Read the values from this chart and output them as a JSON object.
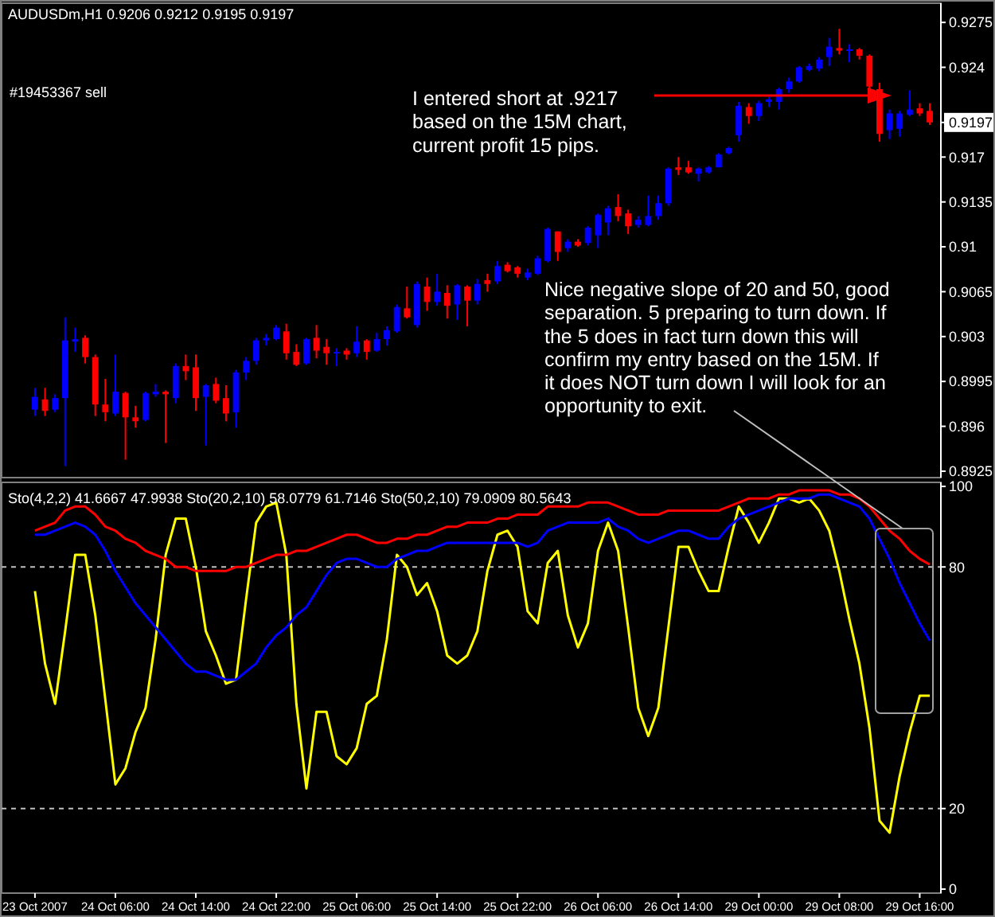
{
  "chart_data": [
    {
      "type": "candlestick",
      "title": "AUDUSDm,H1  0.9206 0.9212 0.9195 0.9197",
      "categories": [
        null,
        null,
        null,
        null,
        null,
        null,
        null,
        null,
        null,
        null,
        null,
        null,
        null,
        null,
        null,
        null,
        null,
        null,
        null,
        null,
        null,
        null,
        null,
        null,
        null,
        null,
        null,
        null,
        null,
        null,
        null,
        null,
        null,
        null,
        null,
        null,
        null,
        null,
        null,
        null,
        null,
        null,
        null,
        null,
        null,
        null,
        null,
        null,
        null,
        null,
        null,
        null,
        null,
        null,
        null,
        null,
        null,
        null,
        null,
        null,
        null,
        null,
        null,
        null,
        null,
        null,
        null,
        null,
        null,
        null,
        null,
        null,
        null,
        null,
        null,
        null,
        null,
        null,
        null,
        null,
        null,
        null,
        null,
        null,
        null,
        null,
        null,
        null,
        null,
        null
      ],
      "ohlc": [
        [
          0.8973,
          0.899,
          0.8968,
          0.8983
        ],
        [
          0.8981,
          0.899,
          0.8968,
          0.8972
        ],
        [
          0.8973,
          0.8985,
          0.8971,
          0.8982
        ],
        [
          0.8982,
          0.9045,
          0.8929,
          0.9027
        ],
        [
          0.9026,
          0.9037,
          0.9018,
          0.9028
        ],
        [
          0.9029,
          0.9031,
          0.9009,
          0.9014
        ],
        [
          0.9014,
          0.9016,
          0.8968,
          0.8977
        ],
        [
          0.8977,
          0.8997,
          0.8964,
          0.8971
        ],
        [
          0.897,
          0.9016,
          0.8968,
          0.8987
        ],
        [
          0.8986,
          0.8987,
          0.8934,
          0.8967
        ],
        [
          0.8967,
          0.8976,
          0.8959,
          0.8964
        ],
        [
          0.8965,
          0.8987,
          0.8964,
          0.8986
        ],
        [
          0.8985,
          0.8993,
          0.8983,
          0.8987
        ],
        [
          0.8987,
          0.8988,
          0.8947,
          0.8985
        ],
        [
          0.8982,
          0.9009,
          0.8978,
          0.9007
        ],
        [
          0.9007,
          0.9016,
          0.8996,
          0.9003
        ],
        [
          0.9006,
          0.9016,
          0.8972,
          0.8982
        ],
        [
          0.8983,
          0.8993,
          0.8945,
          0.8992
        ],
        [
          0.8993,
          0.8998,
          0.8978,
          0.898
        ],
        [
          0.8982,
          0.8992,
          0.8964,
          0.897
        ],
        [
          0.8971,
          0.9004,
          0.8959,
          0.9002
        ],
        [
          0.9002,
          0.9014,
          0.8996,
          0.9011
        ],
        [
          0.9011,
          0.9029,
          0.9008,
          0.9027
        ],
        [
          0.9027,
          0.9032,
          0.9023,
          0.9029
        ],
        [
          0.9028,
          0.9039,
          0.9027,
          0.9037
        ],
        [
          0.9034,
          0.904,
          0.9012,
          0.9017
        ],
        [
          0.9018,
          0.9024,
          0.9007,
          0.9008
        ],
        [
          0.9009,
          0.9029,
          0.9008,
          0.9028
        ],
        [
          0.9029,
          0.9039,
          0.9013,
          0.9019
        ],
        [
          0.9022,
          0.9028,
          0.9008,
          0.9017
        ],
        [
          0.9017,
          0.9021,
          0.9007,
          0.9018
        ],
        [
          0.9019,
          0.9021,
          0.9012,
          0.9016
        ],
        [
          0.9017,
          0.9038,
          0.9014,
          0.9026
        ],
        [
          0.9027,
          0.9028,
          0.9012,
          0.9018
        ],
        [
          0.9019,
          0.9033,
          0.9018,
          0.9028
        ],
        [
          0.9028,
          0.9038,
          0.9023,
          0.9035
        ],
        [
          0.9034,
          0.9055,
          0.9033,
          0.9053
        ],
        [
          0.9052,
          0.9069,
          0.9044,
          0.9045
        ],
        [
          0.9039,
          0.9073,
          0.9037,
          0.9071
        ],
        [
          0.9069,
          0.9076,
          0.905,
          0.9057
        ],
        [
          0.9057,
          0.9079,
          0.9054,
          0.9065
        ],
        [
          0.9064,
          0.907,
          0.9044,
          0.9054
        ],
        [
          0.9055,
          0.9071,
          0.9043,
          0.907
        ],
        [
          0.9069,
          0.907,
          0.9038,
          0.9058
        ],
        [
          0.9058,
          0.9075,
          0.9055,
          0.9071
        ],
        [
          0.9074,
          0.9079,
          0.9065,
          0.9071
        ],
        [
          0.9073,
          0.9089,
          0.9071,
          0.9085
        ],
        [
          0.9086,
          0.9088,
          0.908,
          0.9081
        ],
        [
          0.9084,
          0.9085,
          0.9076,
          0.9079
        ],
        [
          0.9076,
          0.9083,
          0.9074,
          0.908
        ],
        [
          0.9079,
          0.9093,
          0.9078,
          0.9091
        ],
        [
          0.9089,
          0.9115,
          0.9088,
          0.9114
        ],
        [
          0.9112,
          0.9112,
          0.9089,
          0.9096
        ],
        [
          0.9099,
          0.9106,
          0.9096,
          0.9104
        ],
        [
          0.9104,
          0.9106,
          0.91,
          0.9101
        ],
        [
          0.9103,
          0.9116,
          0.9101,
          0.9115
        ],
        [
          0.9109,
          0.9126,
          0.9099,
          0.9125
        ],
        [
          0.9119,
          0.9132,
          0.9109,
          0.913
        ],
        [
          0.9131,
          0.9141,
          0.912,
          0.9124
        ],
        [
          0.9126,
          0.9129,
          0.911,
          0.9116
        ],
        [
          0.9117,
          0.9124,
          0.9115,
          0.9121
        ],
        [
          0.9117,
          0.914,
          0.9116,
          0.9124
        ],
        [
          0.9124,
          0.914,
          0.9121,
          0.9134
        ],
        [
          0.9134,
          0.9162,
          0.9132,
          0.9161
        ],
        [
          0.9162,
          0.917,
          0.9156,
          0.916
        ],
        [
          0.9162,
          0.9167,
          0.9157,
          0.9158
        ],
        [
          0.9157,
          0.9162,
          0.9151,
          0.9161
        ],
        [
          0.9158,
          0.9163,
          0.9157,
          0.9162
        ],
        [
          0.9162,
          0.9173,
          0.9162,
          0.9172
        ],
        [
          0.9173,
          0.9178,
          0.9172,
          0.9177
        ],
        [
          0.9187,
          0.9213,
          0.9182,
          0.921
        ],
        [
          0.9209,
          0.9212,
          0.9196,
          0.9202
        ],
        [
          0.9202,
          0.9214,
          0.9198,
          0.9212
        ],
        [
          0.9213,
          0.9217,
          0.9209,
          0.9215
        ],
        [
          0.9213,
          0.9224,
          0.9207,
          0.9223
        ],
        [
          0.9223,
          0.9232,
          0.922,
          0.9229
        ],
        [
          0.9229,
          0.9241,
          0.9228,
          0.924
        ],
        [
          0.9238,
          0.9243,
          0.9237,
          0.9241
        ],
        [
          0.9239,
          0.9248,
          0.9237,
          0.9246
        ],
        [
          0.9248,
          0.9263,
          0.9241,
          0.9256
        ],
        [
          0.9255,
          0.927,
          0.925,
          0.9253
        ],
        [
          0.9253,
          0.9258,
          0.9244,
          0.9254
        ],
        [
          0.9254,
          0.9255,
          0.9246,
          0.9249
        ],
        [
          0.9249,
          0.925,
          0.9219,
          0.9225
        ],
        [
          0.9223,
          0.9228,
          0.9182,
          0.9188
        ],
        [
          0.9191,
          0.9207,
          0.9184,
          0.9204
        ],
        [
          0.9192,
          0.9206,
          0.9186,
          0.9204
        ],
        [
          0.9203,
          0.9222,
          0.9202,
          0.9207
        ],
        [
          0.9208,
          0.9212,
          0.9202,
          0.9204
        ],
        [
          0.9206,
          0.9212,
          0.9195,
          0.9197
        ]
      ],
      "colors": [
        "#0000ff",
        "#ff0000",
        "#0000ff",
        "#0000ff",
        "#0000ff",
        "#ff0000",
        "#ff0000",
        "#ff0000",
        "#0000ff",
        "#ff0000",
        "#ff0000",
        "#0000ff",
        "#0000ff",
        "#ff0000",
        "#0000ff",
        "#ff0000",
        "#ff0000",
        "#0000ff",
        "#ff0000",
        "#ff0000",
        "#0000ff",
        "#0000ff",
        "#0000ff",
        "#0000ff",
        "#0000ff",
        "#ff0000",
        "#ff0000",
        "#0000ff",
        "#ff0000",
        "#ff0000",
        "#0000ff",
        "#ff0000",
        "#0000ff",
        "#ff0000",
        "#0000ff",
        "#0000ff",
        "#0000ff",
        "#ff0000",
        "#0000ff",
        "#ff0000",
        "#0000ff",
        "#ff0000",
        "#0000ff",
        "#ff0000",
        "#0000ff",
        "#ff0000",
        "#0000ff",
        "#ff0000",
        "#ff0000",
        "#0000ff",
        "#0000ff",
        "#0000ff",
        "#ff0000",
        "#0000ff",
        "#ff0000",
        "#0000ff",
        "#0000ff",
        "#0000ff",
        "#ff0000",
        "#ff0000",
        "#0000ff",
        "#0000ff",
        "#0000ff",
        "#0000ff",
        "#ff0000",
        "#ff0000",
        "#0000ff",
        "#0000ff",
        "#0000ff",
        "#0000ff",
        "#0000ff",
        "#ff0000",
        "#0000ff",
        "#0000ff",
        "#0000ff",
        "#0000ff",
        "#0000ff",
        "#0000ff",
        "#0000ff",
        "#0000ff",
        "#ff0000",
        "#0000ff",
        "#ff0000",
        "#ff0000",
        "#ff0000",
        "#0000ff",
        "#0000ff",
        "#0000ff",
        "#ff0000",
        "#ff0000"
      ],
      "ylim": [
        0.892,
        0.929
      ],
      "yticks": [
        0.8925,
        0.896,
        0.8995,
        0.903,
        0.9065,
        0.91,
        0.9135,
        0.917,
        {
          "value": 0.9197,
          "label": "0.9197"
        },
        0.924,
        0.9275
      ],
      "tick_labels": "y",
      "annotations": [
        "#19453367 sell",
        "I entered short at .9217\nbased on the 15M chart,\ncurrent profit 15 pips.",
        "Nice negative slope of 20 and 50, good\nseparation. 5 preparing to turn down. If\nthe 5 does in fact turn down this will\nconfirm my entry based on the 15M. If\nit does NOT turn down I will look for an\nopportunity to exit."
      ]
    },
    {
      "type": "line",
      "categories": [
        "23 Oct 2007",
        null,
        null,
        null,
        null,
        null,
        null,
        null,
        "24 Oct 06:00",
        null,
        null,
        null,
        null,
        null,
        null,
        null,
        "24 Oct 14:00",
        null,
        null,
        null,
        null,
        null,
        null,
        null,
        "24 Oct 22:00",
        null,
        null,
        null,
        null,
        null,
        null,
        null,
        "25 Oct 06:00",
        null,
        null,
        null,
        null,
        null,
        null,
        null,
        "25 Oct 14:00",
        null,
        null,
        null,
        null,
        null,
        null,
        null,
        "25 Oct 22:00",
        null,
        null,
        null,
        null,
        null,
        null,
        null,
        "26 Oct 06:00",
        null,
        null,
        null,
        null,
        null,
        null,
        null,
        "26 Oct 14:00",
        null,
        null,
        null,
        null,
        null,
        null,
        null,
        "29 Oct 00:00",
        null,
        null,
        null,
        null,
        null,
        null,
        null,
        "29 Oct 08:00",
        null,
        null,
        null,
        null,
        null,
        null,
        null,
        "29 Oct 16:00",
        null
      ],
      "series": [
        {
          "color": "#ffff00",
          "values": [
            74,
            56,
            46,
            64,
            83,
            83,
            68,
            47,
            26,
            30,
            39,
            45,
            62,
            83,
            92,
            92,
            80,
            64,
            58,
            51,
            52,
            72,
            91,
            95,
            96,
            83,
            46,
            25,
            44,
            44,
            33,
            31,
            35,
            46,
            48,
            62,
            83,
            80,
            73,
            76,
            69,
            58,
            56,
            58,
            64,
            79,
            88,
            89,
            85,
            69,
            66,
            81,
            84,
            68,
            60,
            66,
            84,
            91,
            84,
            65,
            45,
            38,
            45,
            65,
            85,
            85,
            79,
            74,
            74,
            85,
            95,
            91,
            86,
            91,
            97,
            97,
            96,
            97,
            94,
            89,
            79,
            67,
            56,
            40,
            17,
            14,
            28,
            39,
            48,
            48
          ]
        },
        {
          "color": "#0000ff",
          "values": [
            88,
            88,
            89,
            90,
            91,
            90,
            88,
            84,
            79,
            75,
            71,
            68,
            65,
            62,
            59,
            56,
            54,
            54,
            53,
            52,
            52,
            54,
            56,
            60,
            63,
            65,
            68,
            70,
            74,
            78,
            81,
            82,
            82,
            81,
            80,
            80,
            82,
            83,
            84,
            84,
            85,
            86,
            86,
            86,
            86,
            86,
            86,
            86,
            86,
            85,
            86,
            89,
            90,
            91,
            91,
            91,
            91,
            92,
            90,
            89,
            87,
            86,
            87,
            88,
            89,
            89,
            88,
            87,
            87,
            90,
            92,
            93,
            94,
            95,
            96,
            97,
            97,
            97,
            98,
            98,
            97,
            96,
            95,
            92,
            87,
            82,
            76,
            71,
            66,
            61.7
          ]
        },
        {
          "color": "#ff0000",
          "values": [
            89,
            90,
            91,
            94,
            95,
            95,
            93,
            90,
            89,
            87,
            86,
            84,
            83,
            82,
            80,
            80,
            79,
            79,
            79,
            79,
            80,
            80,
            81,
            82,
            83,
            83,
            84,
            84,
            85,
            86,
            87,
            88,
            88,
            87,
            86,
            86,
            87,
            87,
            88,
            88,
            89,
            90,
            90,
            91,
            91,
            91,
            92,
            92,
            93,
            93,
            93,
            95,
            95,
            95,
            95,
            96,
            96,
            96,
            95,
            94,
            93,
            93,
            93,
            94,
            94,
            94,
            94,
            94,
            94,
            95,
            96,
            97,
            97,
            97,
            98,
            98,
            99,
            99,
            99,
            99,
            98,
            98,
            97,
            95,
            92,
            89,
            87,
            84,
            82,
            80.6
          ]
        }
      ],
      "ylim": [
        -1,
        101
      ],
      "yticks": [
        0,
        20,
        80,
        100
      ],
      "ref_lines": [
        {
          "axis": "y",
          "value": 80,
          "color": "#c0c0c0",
          "line_style": "dashed"
        },
        {
          "axis": "y",
          "value": 20,
          "color": "#c0c0c0",
          "line_style": "dashed"
        }
      ],
      "annotations": [
        "Sto(4,2,2) 41.6667 47.9938   Sto(20,2,10) 58.0779 61.7146   Sto(50,2,10) 79.0909 80.5643"
      ]
    }
  ]
}
